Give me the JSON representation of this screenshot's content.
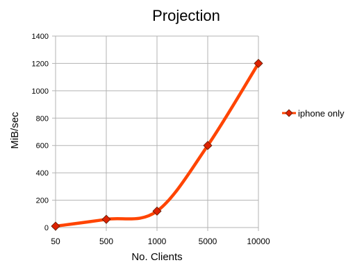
{
  "chart_data": {
    "type": "line",
    "title": "Projection",
    "xlabel": "No. Clients",
    "ylabel": "MiB/sec",
    "categories": [
      "50",
      "500",
      "1000",
      "5000",
      "10000"
    ],
    "series": [
      {
        "name": "iphone only",
        "values": [
          10,
          60,
          120,
          600,
          1200
        ],
        "color": "#ff4400",
        "marker": "diamond",
        "marker_color": "#dd2200",
        "smooth": true
      }
    ],
    "ylim": [
      0,
      1400
    ],
    "yticks": [
      0,
      200,
      400,
      600,
      800,
      1000,
      1200,
      1400
    ],
    "grid": true,
    "legend": "right"
  }
}
